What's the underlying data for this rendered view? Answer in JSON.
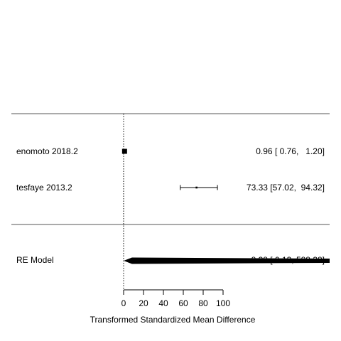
{
  "chart_data": {
    "type": "forest",
    "xlabel": "Transformed Standardized Mean Difference",
    "x_ticks": [
      0,
      20,
      40,
      60,
      80,
      100
    ],
    "x_tick_labels": [
      "0",
      "20",
      "40",
      "60",
      "80",
      "100"
    ],
    "reference_line_x": 0,
    "studies": [
      {
        "label": "enomoto 2018.2",
        "estimate": 0.96,
        "ci_lower": 0.76,
        "ci_upper": 1.2,
        "ci_text": "0.96 [ 0.76,   1.20]"
      },
      {
        "label": "tesfaye 2013.2",
        "estimate": 73.33,
        "ci_lower": 57.02,
        "ci_upper": 94.32,
        "ci_text": "73.33 [57.02,  94.32]"
      }
    ],
    "summary": {
      "label": "RE Model",
      "estimate": 8.38,
      "ci_lower": 0.13,
      "ci_upper": 588.38,
      "ci_text": "8.38 [ 0.13, 588.38]"
    }
  }
}
